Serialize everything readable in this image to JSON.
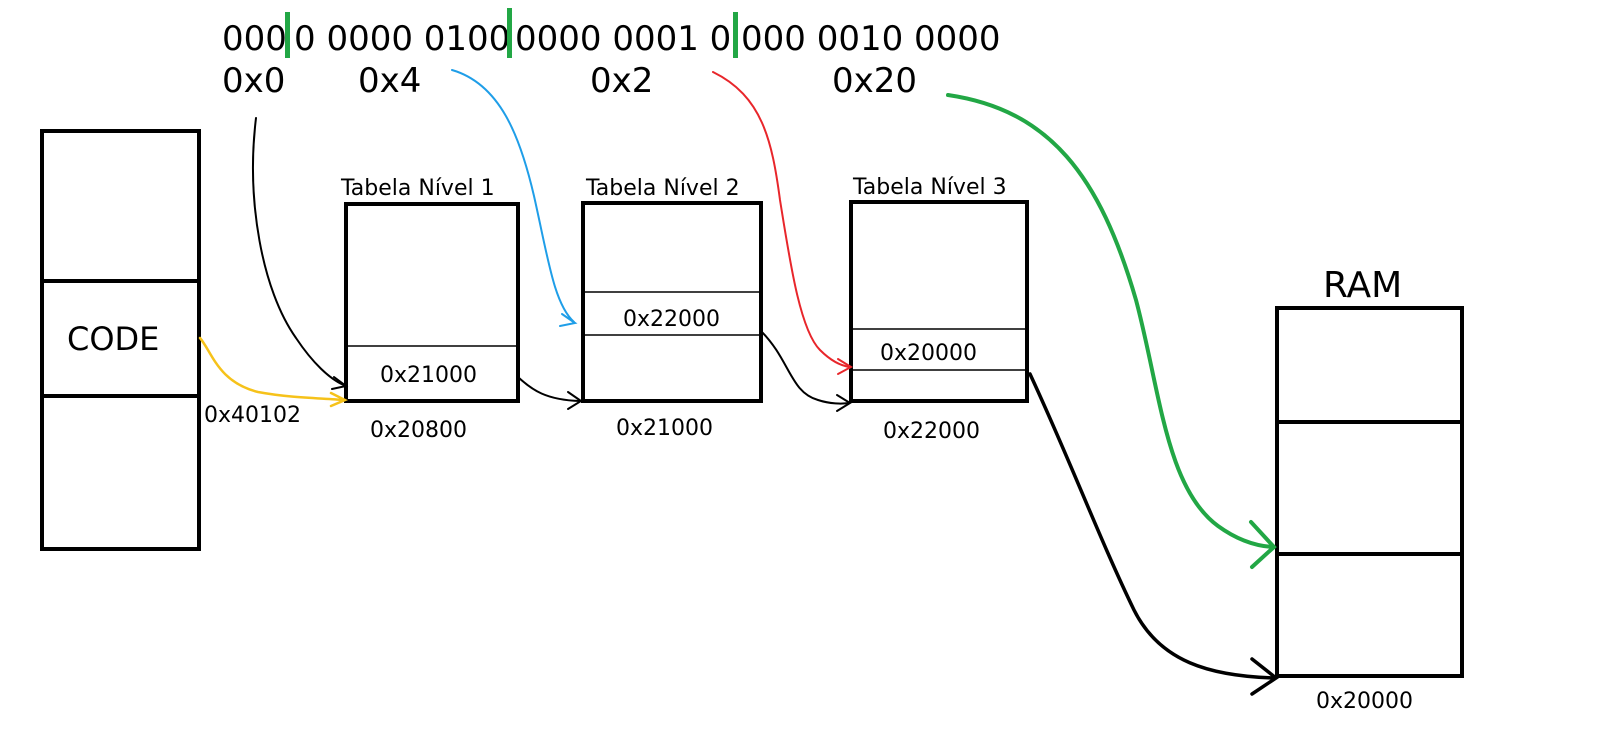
{
  "address": {
    "bits": [
      {
        "text": "000"
      },
      {
        "text": "0 0000 0100"
      },
      {
        "text": "0000 0001 0"
      },
      {
        "text": "000 0010 0000"
      }
    ],
    "indices": [
      "0x0",
      "0x4",
      "0x2",
      "0x20"
    ],
    "separator_color": "#22a745"
  },
  "code_block": {
    "label": "CODE",
    "pointer": "0x40102"
  },
  "tables": [
    {
      "title": "Tabela Nível 1",
      "entry": "0x21000",
      "base": "0x20800"
    },
    {
      "title": "Tabela Nível 2",
      "entry": "0x22000",
      "base": "0x21000"
    },
    {
      "title": "Tabela Nível 3",
      "entry": "0x20000",
      "base": "0x22000"
    }
  ],
  "ram": {
    "label": "RAM",
    "base": "0x20000"
  },
  "colors": {
    "yellow_arrow": "#f6c21a",
    "blue_arrow": "#1f9ee8",
    "red_arrow": "#e8262b",
    "green_arrow": "#22a745",
    "black": "#000000"
  }
}
